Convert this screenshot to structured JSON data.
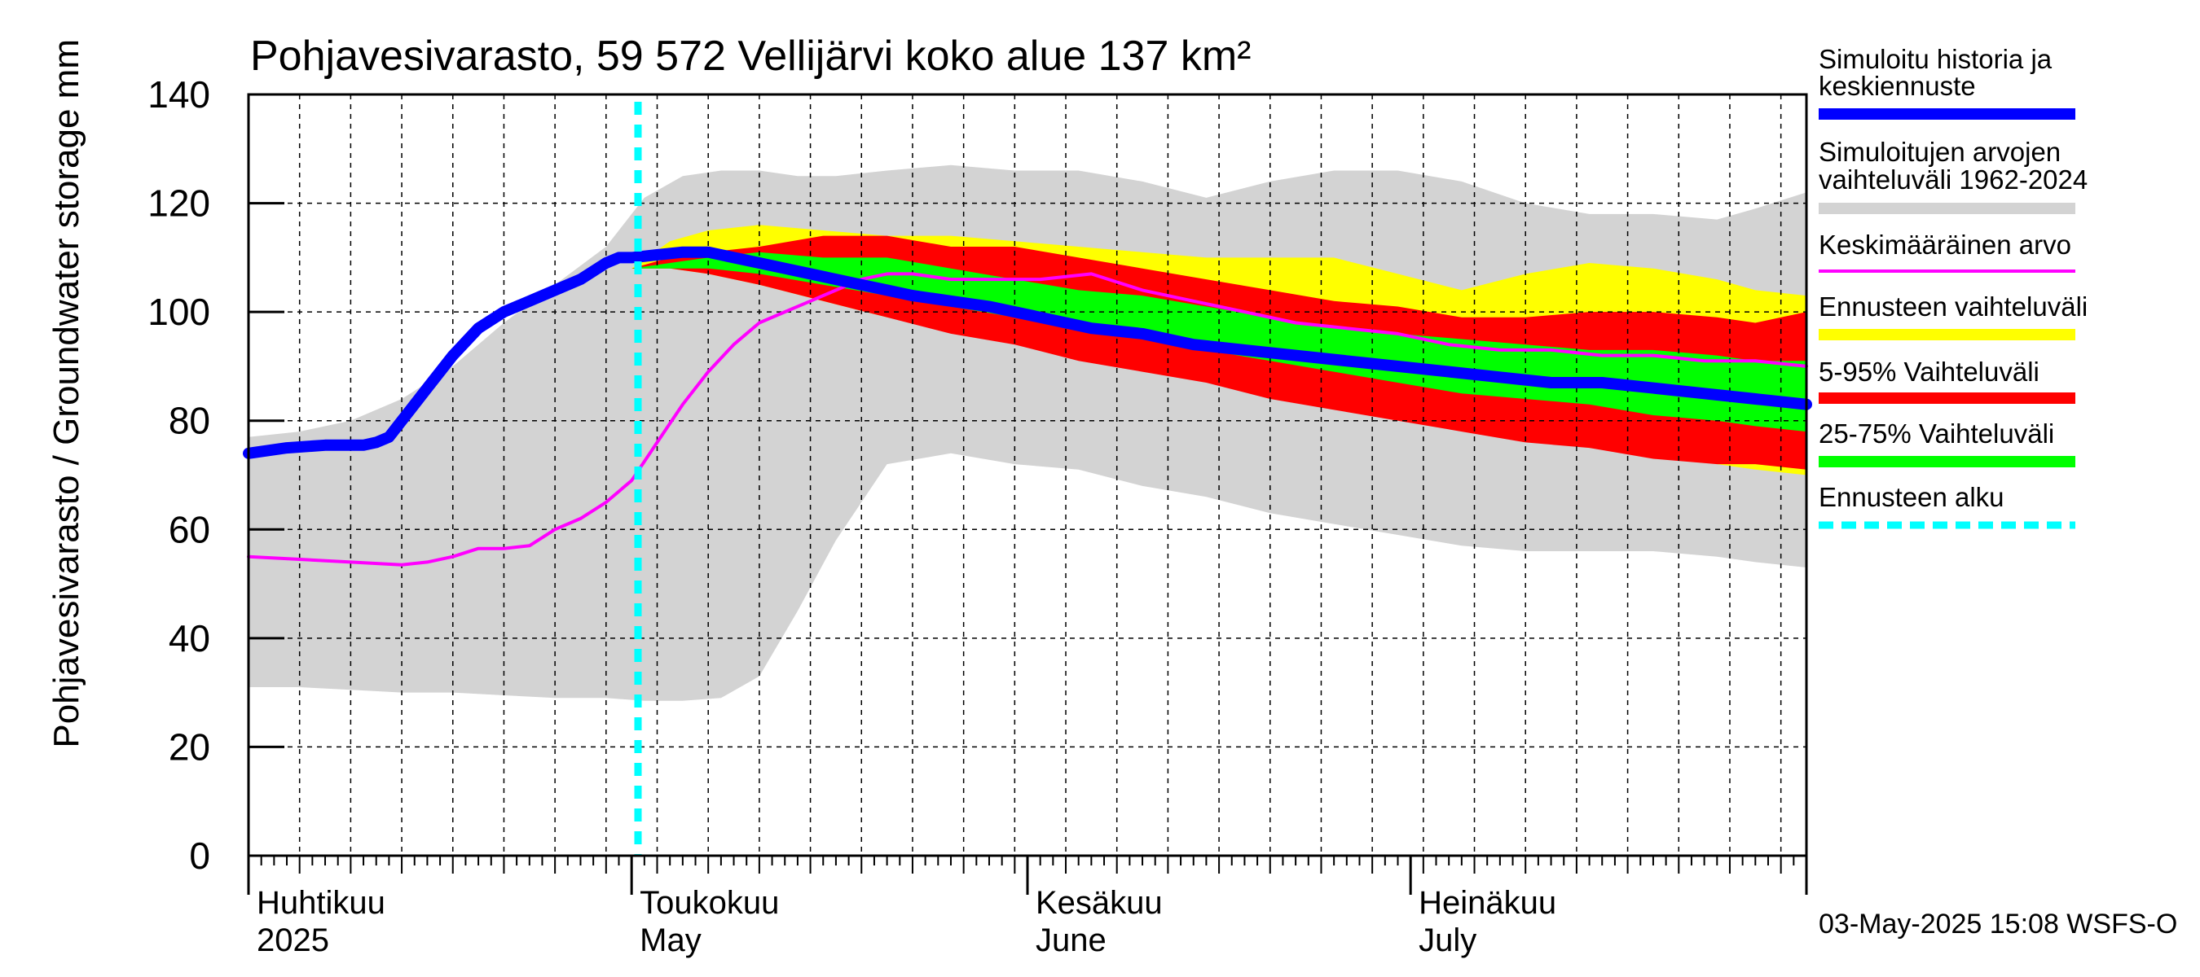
{
  "chart_data": {
    "type": "area",
    "title": "Pohjavesivarasto, 59 572 Vellijärvi koko alue 137 km²",
    "ylabel": "Pohjavesivarasto / Groundwater storage   mm",
    "ylim": [
      0,
      140
    ],
    "yticks": [
      "0",
      "20",
      "40",
      "60",
      "80",
      "100",
      "120",
      "140"
    ],
    "xlim_days": [
      0,
      122
    ],
    "x_unit": "days since 2025-04-01",
    "month_labels": [
      {
        "fi": "Huhtikuu",
        "en": "2025",
        "day": 0
      },
      {
        "fi": "Toukokuu",
        "en": "May",
        "day": 30
      },
      {
        "fi": "Kesäkuu",
        "en": "June",
        "day": 61
      },
      {
        "fi": "Heinäkuu",
        "en": "July",
        "day": 91
      }
    ],
    "forecast_start_day": 30.5,
    "timestamp": "03-May-2025 15:08 WSFS-O",
    "colors": {
      "history": "#0000ff",
      "range_1962_2024": "#d3d3d3",
      "mean": "#ff00ff",
      "forecast_range": "#ffff00",
      "range_5_95": "#ff0000",
      "range_25_75": "#00ff00",
      "forecast_start": "#00ffff"
    },
    "legend": [
      {
        "key": "history",
        "line1": "Simuloitu historia ja",
        "line2": "keskiennuste"
      },
      {
        "key": "range_1962_2024",
        "line1": "Simuloitujen arvojen",
        "line2": "vaihteluväli 1962-2024"
      },
      {
        "key": "mean",
        "line1": "Keskimääräinen arvo",
        "line2": ""
      },
      {
        "key": "forecast_range",
        "line1": "Ennusteen vaihteluväli",
        "line2": ""
      },
      {
        "key": "range_5_95",
        "line1": "5-95% Vaihteluväli",
        "line2": ""
      },
      {
        "key": "range_25_75",
        "line1": "25-75% Vaihteluväli",
        "line2": ""
      },
      {
        "key": "forecast_start",
        "line1": "Ennusteen alku",
        "line2": ""
      }
    ],
    "series": {
      "range_1962_2024": {
        "x": [
          0,
          4,
          8,
          12,
          16,
          20,
          24,
          28,
          31,
          34,
          37,
          40,
          43,
          46,
          50,
          55,
          60,
          65,
          70,
          75,
          80,
          85,
          90,
          95,
          100,
          105,
          110,
          115,
          118,
          122
        ],
        "lower": [
          31,
          31,
          30.5,
          30,
          30,
          29.5,
          29,
          29,
          28.5,
          28.5,
          29,
          33,
          45,
          58,
          72,
          74,
          72,
          71,
          68,
          66,
          63,
          61,
          59,
          57,
          56,
          56,
          56,
          55,
          54,
          53
        ],
        "upper": [
          77,
          78,
          80,
          84,
          90,
          98,
          105,
          112,
          121,
          125,
          126,
          126,
          125,
          125,
          126,
          127,
          126,
          126,
          124,
          121,
          124,
          126,
          126,
          124,
          120,
          118,
          118,
          117,
          119,
          122
        ]
      },
      "forecast_range": {
        "x": [
          30,
          33,
          36,
          40,
          45,
          50,
          55,
          60,
          65,
          70,
          75,
          80,
          85,
          90,
          95,
          100,
          105,
          110,
          115,
          118,
          122
        ],
        "lower": [
          108,
          108,
          107,
          105,
          102,
          99,
          97,
          95,
          93,
          91,
          89,
          86,
          84,
          82,
          80,
          77,
          75,
          74,
          72,
          71,
          70
        ],
        "upper": [
          108,
          113,
          115,
          116,
          115,
          114,
          114,
          113,
          112,
          111,
          110,
          110,
          110,
          107,
          104,
          107,
          109,
          108,
          106,
          104,
          103
        ]
      },
      "range_5_95": {
        "x": [
          30,
          33,
          36,
          40,
          45,
          50,
          55,
          60,
          65,
          70,
          75,
          80,
          85,
          90,
          95,
          100,
          105,
          110,
          115,
          118,
          122
        ],
        "lower": [
          108,
          108,
          107,
          105,
          102,
          99,
          96,
          94,
          91,
          89,
          87,
          84,
          82,
          80,
          78,
          76,
          75,
          73,
          72,
          72,
          71
        ],
        "upper": [
          108,
          110,
          111,
          112,
          114,
          114,
          112,
          112,
          110,
          108,
          106,
          104,
          102,
          101,
          99,
          99,
          100,
          100,
          99,
          98,
          100
        ]
      },
      "range_25_75": {
        "x": [
          30,
          33,
          36,
          40,
          45,
          50,
          55,
          60,
          65,
          70,
          75,
          80,
          85,
          90,
          95,
          100,
          105,
          110,
          115,
          118,
          122
        ],
        "lower": [
          108,
          108,
          108,
          107,
          105,
          103,
          101,
          99,
          97,
          95,
          93,
          91,
          89,
          87,
          85,
          84,
          83,
          81,
          80,
          79,
          78
        ],
        "upper": [
          108,
          109,
          110,
          111,
          110,
          110,
          108,
          106,
          104,
          103,
          101,
          99,
          97,
          96,
          95,
          94,
          93,
          93,
          92,
          91,
          91
        ]
      },
      "mean": {
        "x": [
          0,
          4,
          8,
          12,
          14,
          16,
          18,
          20,
          22,
          24,
          26,
          28,
          30,
          32,
          34,
          36,
          38,
          40,
          42,
          44,
          46,
          48,
          50,
          52,
          55,
          58,
          62,
          66,
          70,
          74,
          78,
          82,
          86,
          90,
          94,
          98,
          102,
          106,
          110,
          114,
          118,
          122
        ],
        "y": [
          55,
          54.5,
          54,
          53.5,
          54,
          55,
          56.5,
          56.5,
          57,
          60,
          62,
          65,
          69,
          76,
          83,
          89,
          94,
          98,
          100,
          102,
          104,
          106,
          107,
          107,
          106,
          106,
          106,
          107,
          104,
          102,
          100,
          98,
          97,
          96,
          94,
          93,
          93,
          92,
          92,
          91,
          91,
          90
        ]
      },
      "history": {
        "x": [
          0,
          3,
          6,
          9,
          10,
          11,
          12,
          14,
          16,
          18,
          20,
          22,
          24,
          26,
          28,
          29,
          30,
          32,
          34,
          36,
          38,
          40,
          42,
          44,
          46,
          48,
          50,
          52,
          55,
          58,
          62,
          66,
          70,
          74,
          78,
          82,
          86,
          90,
          94,
          98,
          102,
          106,
          110,
          114,
          118,
          122
        ],
        "y": [
          74,
          75,
          75.5,
          75.5,
          76,
          77,
          80,
          86,
          92,
          97,
          100,
          102,
          104,
          106,
          109,
          110,
          110,
          110.5,
          111,
          111,
          110,
          109,
          108,
          107,
          106,
          105,
          104,
          103,
          102,
          101,
          99,
          97,
          96,
          94,
          93,
          92,
          91,
          90,
          89,
          88,
          87,
          87,
          86,
          85,
          84,
          83
        ]
      }
    }
  }
}
